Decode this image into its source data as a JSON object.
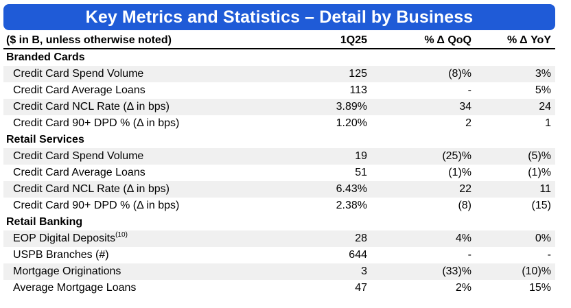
{
  "title": "Key Metrics and Statistics – Detail by Business",
  "header": {
    "label": "($ in B, unless otherwise noted)",
    "col1": "1Q25",
    "col2": "% Δ QoQ",
    "col3": "% Δ YoY"
  },
  "sections": [
    {
      "name": "Branded Cards",
      "rows": [
        {
          "label": "Credit Card Spend Volume",
          "q": "125",
          "qoq": "(8)%",
          "yoy": "3%"
        },
        {
          "label": "Credit Card Average Loans",
          "q": "113",
          "qoq": "-",
          "yoy": "5%"
        },
        {
          "label": "Credit Card NCL Rate  (Δ in bps)",
          "q": "3.89%",
          "qoq": "34",
          "yoy": "24"
        },
        {
          "label": "Credit Card 90+ DPD % (Δ in bps)",
          "q": "1.20%",
          "qoq": "2",
          "yoy": "1"
        }
      ]
    },
    {
      "name": "Retail Services",
      "rows": [
        {
          "label": "Credit Card Spend Volume",
          "q": "19",
          "qoq": "(25)%",
          "yoy": "(5)%"
        },
        {
          "label": "Credit Card Average Loans",
          "q": "51",
          "qoq": "(1)%",
          "yoy": "(1)%"
        },
        {
          "label": "Credit Card NCL Rate  (Δ in bps)",
          "q": "6.43%",
          "qoq": "22",
          "yoy": "11"
        },
        {
          "label": "Credit Card 90+ DPD % (Δ in bps)",
          "q": "2.38%",
          "qoq": "(8)",
          "yoy": "(15)"
        }
      ]
    },
    {
      "name": "Retail Banking",
      "rows": [
        {
          "label": "EOP Digital Deposits",
          "sup": "(10)",
          "q": "28",
          "qoq": "4%",
          "yoy": "0%"
        },
        {
          "label": "USPB Branches (#)",
          "q": "644",
          "qoq": "-",
          "yoy": "-"
        },
        {
          "label": "Mortgage Originations",
          "q": "3",
          "qoq": "(33)%",
          "yoy": "(10)%"
        },
        {
          "label": "Average Mortgage Loans",
          "q": "47",
          "qoq": "2%",
          "yoy": "15%"
        }
      ]
    }
  ]
}
